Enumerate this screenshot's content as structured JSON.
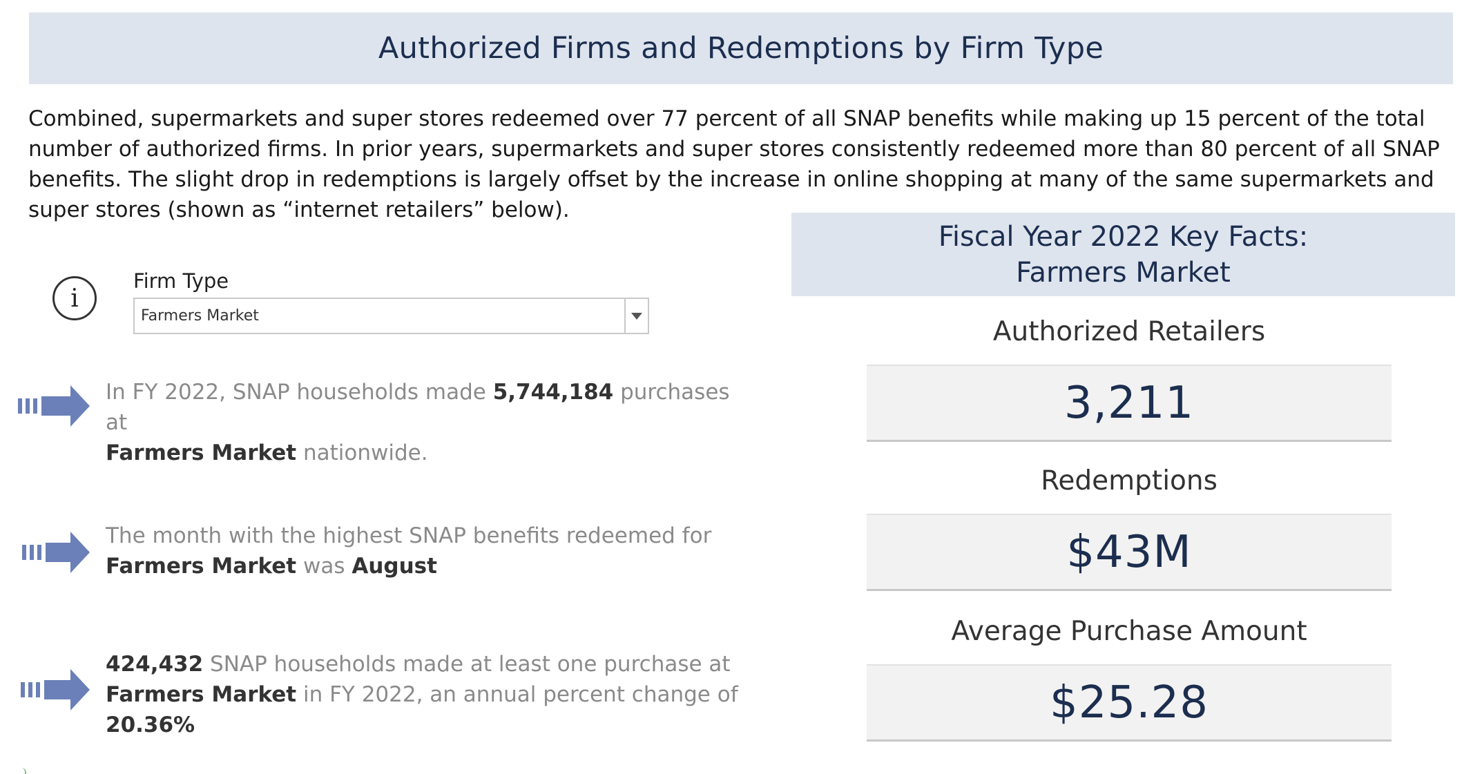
{
  "title": "Authorized Firms and Redemptions by Firm Type",
  "intro": "Combined, supermarkets and super stores redeemed over 77 percent of all SNAP benefits while making up 15 percent of the total number of authorized firms. In prior years, supermarkets and super stores consistently redeemed more than 80 percent of all SNAP benefits. The slight drop in redemptions is largely offset by the increase in online shopping at many of the same supermarkets and super stores (shown as “internet retailers” below).",
  "filter": {
    "label": "Firm Type",
    "value": "Farmers Market"
  },
  "facts": {
    "purchases": {
      "pre": "In FY 2022, SNAP households made ",
      "count": "5,744,184",
      "mid": " purchases at ",
      "firm": "Farmers Market",
      "post": " nationwide."
    },
    "month": {
      "pre": "The month with the highest SNAP benefits redeemed for ",
      "firm": "Farmers Market",
      "mid": " was ",
      "month": "August"
    },
    "households": {
      "count": "424,432",
      "pre": " SNAP households made at least one purchase at ",
      "firm": "Farmers Market",
      "mid": " in FY 2022, an annual percent change of ",
      "pct": "20.36%"
    }
  },
  "key_facts": {
    "header_line1": "Fiscal Year 2022 Key Facts:",
    "header_line2": "Farmers Market",
    "authorized_label": "Authorized Retailers",
    "authorized_value": "3,211",
    "redemptions_label": "Redemptions",
    "redemptions_value": "$43M",
    "avg_label": "Average Purchase Amount",
    "avg_value": "$25.28"
  },
  "colors": {
    "banner_bg": "#dde4ee",
    "title_text": "#1c2e4f",
    "arrow": "#6b80b8"
  },
  "icons": {
    "info": "info-circle-icon",
    "arrow": "arrow-right-icon",
    "dropdown": "chevron-down-icon"
  }
}
